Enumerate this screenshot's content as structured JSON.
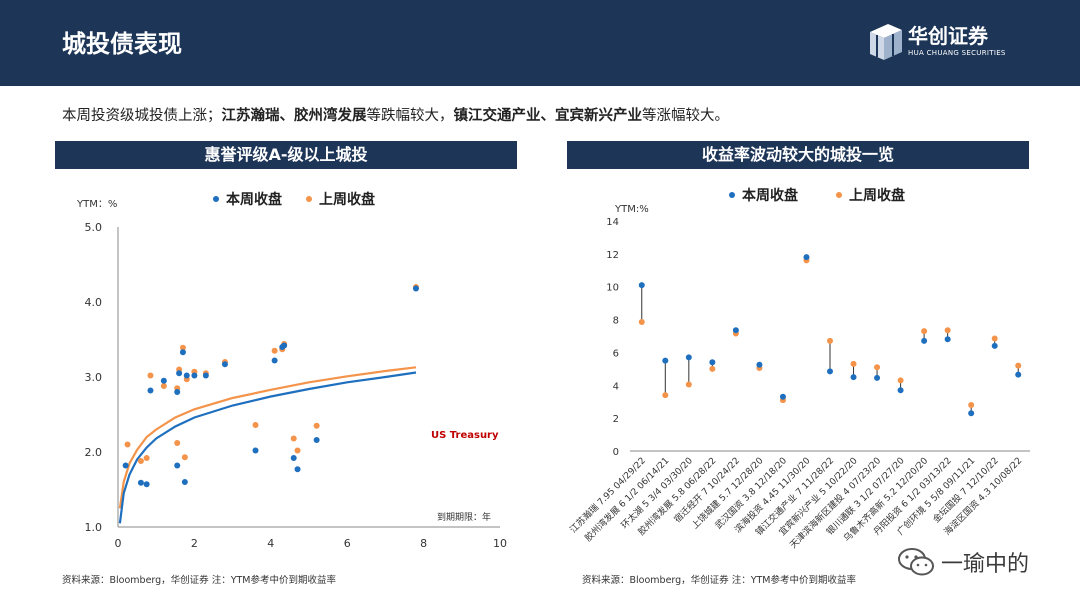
{
  "header": {
    "title": "城投债表现",
    "logo_cn": "华创证券",
    "logo_en": "HUA CHUANG SECURITIES"
  },
  "intro": {
    "prefix": "本周投资级城投债上涨；",
    "bold1": "江苏瀚瑞、胶州湾发展",
    "mid1": "等跌幅较大，",
    "bold2": "镇江交通产业、宜宾新兴产业",
    "suffix": "等涨幅较大。"
  },
  "left_panel": {
    "title": "惠誉评级A-级以上城投",
    "source": "资料来源：Bloomberg，华创证券      注：YTM参考中价到期收益率"
  },
  "right_panel": {
    "title": "收益率波动较大的城投一览",
    "source": "资料来源：Bloomberg，华创证券      注：YTM参考中价到期收益率"
  },
  "watermark": "一瑜中的",
  "colors": {
    "this_week": "#1f6fbf",
    "last_week": "#f4934a",
    "header": "#1d3557",
    "annotation": "#c00000"
  },
  "chart_data": [
    {
      "type": "scatter",
      "title": "惠誉评级A-级以上城投",
      "ylabel": "YTM：%",
      "xlabel": "到期期限：年",
      "xlim": [
        0,
        10
      ],
      "ylim": [
        1.0,
        5.0
      ],
      "xticks": [
        0,
        2,
        4,
        6,
        8,
        10
      ],
      "yticks": [
        "1.0",
        "2.0",
        "3.0",
        "4.0",
        "5.0"
      ],
      "legend": [
        "本周收盘",
        "上周收盘"
      ],
      "annotation": "US Treasury",
      "series": [
        {
          "name": "本周收盘",
          "points": [
            [
              0.2,
              1.82
            ],
            [
              0.6,
              1.59
            ],
            [
              0.75,
              1.57
            ],
            [
              0.85,
              2.82
            ],
            [
              1.2,
              2.95
            ],
            [
              1.55,
              2.8
            ],
            [
              1.55,
              1.82
            ],
            [
              1.6,
              3.05
            ],
            [
              1.7,
              3.33
            ],
            [
              1.75,
              1.6
            ],
            [
              1.8,
              3.02
            ],
            [
              2.0,
              3.02
            ],
            [
              2.3,
              3.02
            ],
            [
              2.8,
              3.17
            ],
            [
              3.6,
              2.02
            ],
            [
              4.1,
              3.22
            ],
            [
              4.3,
              3.4
            ],
            [
              4.35,
              3.42
            ],
            [
              4.6,
              1.92
            ],
            [
              4.7,
              1.77
            ],
            [
              5.2,
              2.16
            ],
            [
              7.8,
              4.18
            ]
          ]
        },
        {
          "name": "上周收盘",
          "points": [
            [
              0.25,
              2.1
            ],
            [
              0.6,
              1.88
            ],
            [
              0.75,
              1.92
            ],
            [
              0.85,
              3.02
            ],
            [
              1.2,
              2.88
            ],
            [
              1.55,
              2.85
            ],
            [
              1.55,
              2.12
            ],
            [
              1.6,
              3.1
            ],
            [
              1.7,
              3.39
            ],
            [
              1.75,
              1.93
            ],
            [
              1.8,
              2.97
            ],
            [
              2.0,
              3.07
            ],
            [
              2.3,
              3.05
            ],
            [
              2.8,
              3.2
            ],
            [
              3.6,
              2.36
            ],
            [
              4.1,
              3.35
            ],
            [
              4.3,
              3.37
            ],
            [
              4.35,
              3.44
            ],
            [
              4.6,
              2.18
            ],
            [
              4.7,
              2.02
            ],
            [
              5.2,
              2.35
            ],
            [
              7.8,
              4.2
            ]
          ]
        },
        {
          "name": "US Treasury 本周",
          "type": "line",
          "points": [
            [
              0.05,
              1.05
            ],
            [
              0.15,
              1.45
            ],
            [
              0.3,
              1.7
            ],
            [
              0.5,
              1.9
            ],
            [
              0.75,
              2.06
            ],
            [
              1,
              2.18
            ],
            [
              1.5,
              2.34
            ],
            [
              2,
              2.46
            ],
            [
              3,
              2.62
            ],
            [
              4,
              2.74
            ],
            [
              5,
              2.84
            ],
            [
              6,
              2.93
            ],
            [
              7,
              3.0
            ],
            [
              7.8,
              3.06
            ]
          ]
        },
        {
          "name": "US Treasury 上周",
          "type": "line",
          "points": [
            [
              0.05,
              1.25
            ],
            [
              0.15,
              1.6
            ],
            [
              0.3,
              1.85
            ],
            [
              0.5,
              2.03
            ],
            [
              0.75,
              2.2
            ],
            [
              1,
              2.3
            ],
            [
              1.5,
              2.46
            ],
            [
              2,
              2.57
            ],
            [
              3,
              2.72
            ],
            [
              4,
              2.83
            ],
            [
              5,
              2.93
            ],
            [
              6,
              3.01
            ],
            [
              7,
              3.08
            ],
            [
              7.8,
              3.13
            ]
          ]
        }
      ]
    },
    {
      "type": "scatter",
      "title": "收益率波动较大的城投一览",
      "ylabel": "YTM:%",
      "ylim": [
        0,
        14
      ],
      "yticks": [
        0,
        2,
        4,
        6,
        8,
        10,
        12,
        14
      ],
      "legend": [
        "本周收盘",
        "上周收盘"
      ],
      "categories": [
        "江苏瀚瑞 7.95 04/29/22",
        "胶州湾发展 6 1/2 06/14/21",
        "环太湖 5 3/4 03/30/20",
        "胶州湾发展 5.8 06/28/22",
        "宿迁经开 7 10/24/22",
        "上饶城建 5.7 12/28/20",
        "武汉国资 3.8 12/18/20",
        "滨海投资 4.45 11/30/20",
        "镇江交通产业 7 11/28/22",
        "宜宾新兴产业 5 10/22/20",
        "天津滨海新区建投 4 07/23/20",
        "银川通联 3 1/2 07/27/20",
        "乌鲁木齐高新 5.2 12/20/20",
        "丹阳投资 6 1/2 03/13/22",
        "广创环境 5 5/8 09/11/21",
        "金坛国投 7 12/10/22",
        "海淀区国资 4.3 10/08/22"
      ],
      "series": [
        {
          "name": "本周收盘",
          "values": [
            10.1,
            5.5,
            5.7,
            5.4,
            7.35,
            5.25,
            3.3,
            11.8,
            4.85,
            4.5,
            4.45,
            3.7,
            6.7,
            6.8,
            2.3,
            6.4,
            4.65
          ]
        },
        {
          "name": "上周收盘",
          "values": [
            7.85,
            3.4,
            4.05,
            5.0,
            7.15,
            5.05,
            3.1,
            11.6,
            6.7,
            5.3,
            5.1,
            4.3,
            7.3,
            7.35,
            2.8,
            6.85,
            5.2
          ]
        }
      ]
    }
  ]
}
